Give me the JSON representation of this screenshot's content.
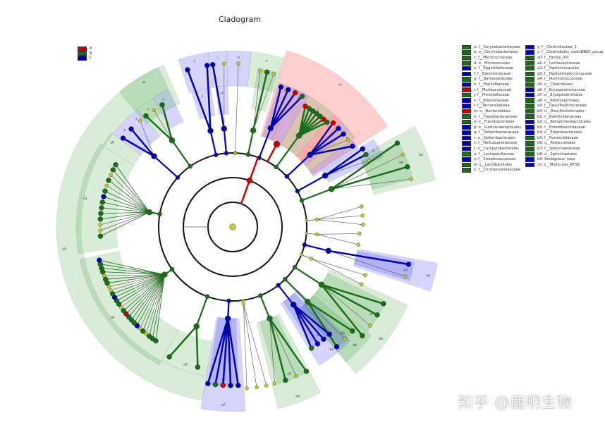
{
  "title": "Cladogram",
  "colors": {
    "A": "#cc0000",
    "B": "#1a6e1a",
    "C": "#0000b0",
    "unenriched": "#c8c832"
  },
  "group_legend": [
    {
      "label": "A",
      "color": "#cc0000"
    },
    {
      "label": "B",
      "color": "#1a6e1a"
    },
    {
      "label": "C",
      "color": "#0000b0"
    }
  ],
  "taxa_legend": [
    {
      "key": "a",
      "name": "a: f__Corynebacteriaceae",
      "group": "B"
    },
    {
      "key": "b",
      "name": "b: o__Corynebacteriales",
      "group": "B"
    },
    {
      "key": "c",
      "name": "c: f__Micrococcaceae",
      "group": "B"
    },
    {
      "key": "d",
      "name": "d: o__Micrococcales",
      "group": "B"
    },
    {
      "key": "e",
      "name": "e: f__Eggerthellaceae",
      "group": "C"
    },
    {
      "key": "f",
      "name": "f: f__Bacteroidaceae",
      "group": "C"
    },
    {
      "key": "g",
      "name": "g: f__Barnesiellaceae",
      "group": "B"
    },
    {
      "key": "h",
      "name": "h: f__Marinifilaceae",
      "group": "C"
    },
    {
      "key": "i",
      "name": "i: f__Muribaculaceae",
      "group": "A"
    },
    {
      "key": "j",
      "name": "j: f__Prevotellaceae",
      "group": "B"
    },
    {
      "key": "k",
      "name": "k: f__Rikenellaceae",
      "group": "C"
    },
    {
      "key": "l",
      "name": "l: f__Tannerellaceae",
      "group": "C"
    },
    {
      "key": "m",
      "name": "m: o__Bacteroidales",
      "group": "A"
    },
    {
      "key": "n",
      "name": "n: f__Flavobacteriaceae",
      "group": "B"
    },
    {
      "key": "o",
      "name": "o: o__Flavobacteriales",
      "group": "B"
    },
    {
      "key": "p",
      "name": "p: o__Gastranaerophilales",
      "group": "C"
    },
    {
      "key": "q",
      "name": "q: f__Deferribacteraceae",
      "group": "C"
    },
    {
      "key": "r",
      "name": "r: o__Deferribacterales",
      "group": "C"
    },
    {
      "key": "s",
      "name": "s: f__Helicobacteraceae",
      "group": "C"
    },
    {
      "key": "t",
      "name": "t: o__Campylobacterales",
      "group": "C"
    },
    {
      "key": "u",
      "name": "u: f__Lactobacillaceae",
      "group": "B"
    },
    {
      "key": "v",
      "name": "v: f__Streptococcaceae",
      "group": "C"
    },
    {
      "key": "w",
      "name": "w: o__Lactobacillales",
      "group": "B"
    },
    {
      "key": "x",
      "name": "x: f__Christensenellaceae",
      "group": "B"
    },
    {
      "key": "y",
      "name": "y: f__Clostridiaceae_1",
      "group": "C"
    },
    {
      "key": "z",
      "name": "z: f__Clostridiales_vadinBB60_group",
      "group": "C"
    },
    {
      "key": "a0",
      "name": "a0: f__Family_XIII",
      "group": "B"
    },
    {
      "key": "a1",
      "name": "a1: f__Lachnospiraceae",
      "group": "B"
    },
    {
      "key": "a2",
      "name": "a2: f__Peptococcaceae",
      "group": "B"
    },
    {
      "key": "a3",
      "name": "a3: f__Peptostreptococcaceae",
      "group": "B"
    },
    {
      "key": "a4",
      "name": "a4: f__Ruminococcaceae",
      "group": "B"
    },
    {
      "key": "a5",
      "name": "a5: o__Clostridiales",
      "group": "B"
    },
    {
      "key": "a6",
      "name": "a6: f__Erysipelotrichaceae",
      "group": "C"
    },
    {
      "key": "a7",
      "name": "a7: o__Erysipelotrichales",
      "group": "C"
    },
    {
      "key": "a8",
      "name": "a8: o__Rhodospirillales",
      "group": "B"
    },
    {
      "key": "a9",
      "name": "a9: f__Desulfovibrionaceae",
      "group": "B"
    },
    {
      "key": "b0",
      "name": "b0: o__Desulfovibrionales",
      "group": "B"
    },
    {
      "key": "b1",
      "name": "b1: f__Burkholderiaceae",
      "group": "B"
    },
    {
      "key": "b2",
      "name": "b2: o__Betaproteobacteriales",
      "group": "C"
    },
    {
      "key": "b3",
      "name": "b3: f__Enterobacteriaceae",
      "group": "C"
    },
    {
      "key": "b4",
      "name": "b4: o__Enterobacteriales",
      "group": "C"
    },
    {
      "key": "b5",
      "name": "b5: f__Pasteurellaceae",
      "group": "B"
    },
    {
      "key": "b6",
      "name": "b6: o__Pasteurellales",
      "group": "B"
    },
    {
      "key": "b7",
      "name": "b7: f__Spirochaetaceae",
      "group": "B"
    },
    {
      "key": "b8",
      "name": "b8: o__Spirochaetales",
      "group": "B"
    },
    {
      "key": "b9",
      "name": "b9: Ambiguous_taxa",
      "group": "C"
    },
    {
      "key": "c0",
      "name": "c0: o__Mollicutes_RF39",
      "group": "C"
    }
  ],
  "watermark": "知乎 @鹿明生物"
}
